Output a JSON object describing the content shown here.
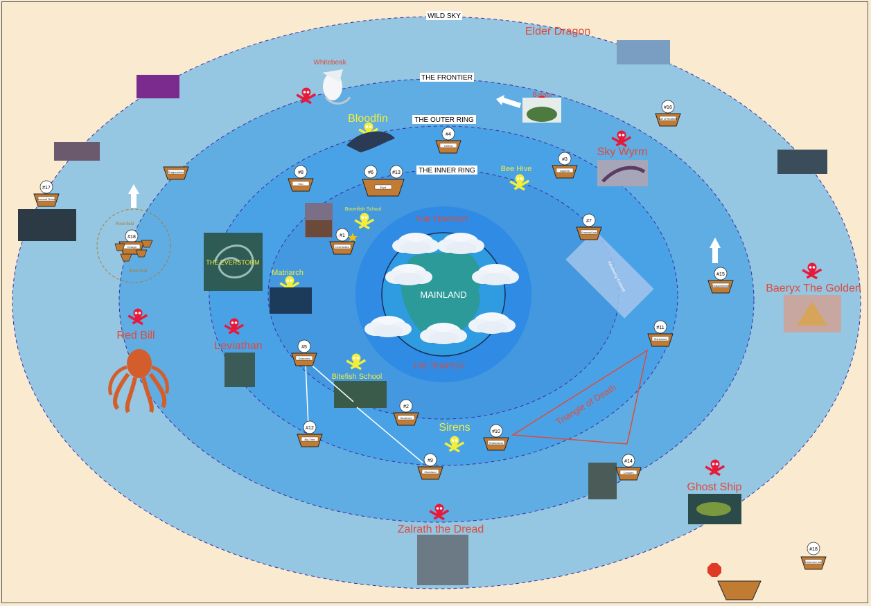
{
  "rings": {
    "wild_sky": "WILD SKY",
    "frontier": "THE FRONTIER",
    "outer_ring": "THE OUTER RING",
    "inner_ring": "THE INNER RING",
    "tempest_top": "THE TEMPEST",
    "tempest_bottom": "THE TEMPEST",
    "mainland": "MAINLAND",
    "everstorm": "THE EVERSTORM"
  },
  "threats": {
    "elder_dragon": "Elder Dragon",
    "whitebeak": "Whitebeak",
    "balaur": "Balaur",
    "sky_wyrm": "Sky Wyrm",
    "baeryx": "Baeryx The Golden",
    "red_bill": "Red Bill",
    "leviathan": "Leviathan",
    "ghost_ship": "Ghost Ship",
    "zalrath": "Zalrath the Dread"
  },
  "minor_threats": {
    "bloodfin": "Bloodfin",
    "bee_hive": "Bee Hive",
    "boomfish": "Boomfish School",
    "matriarch": "Matriarch",
    "bitefish": "Bitefish School",
    "sirens": "Sirens"
  },
  "zones": {
    "triangle": "Triangle of Death",
    "rock_field_top": "Rock field",
    "rock_field_bottom": "Rock field",
    "windsong": "Windsong Current"
  },
  "islands": {
    "n1": "#1",
    "n2": "#2",
    "n3": "#3",
    "n4": "#4",
    "n5": "#5",
    "n6": "#6",
    "n7": "#7",
    "n8": "#8",
    "n9": "#9",
    "n10": "#10",
    "n11": "#11",
    "n12": "#12",
    "n13": "#13",
    "n14": "#14",
    "n15": "#15",
    "n16": "#16",
    "n17": "#17",
    "n18a": "#18",
    "n18b": "#18"
  },
  "island_names": {
    "i1": "Overstoken",
    "i2": "Seashore",
    "i3": "Aquirria",
    "i4": "Umbra",
    "i5": "Duskmire",
    "i6": "Elyst",
    "i7": "Emerald Isle",
    "i8": "Edo",
    "i9": "Muckland",
    "i10": "Shadowrun",
    "i11": "Shirewood",
    "i12": "Big Tree",
    "i14": "Corsairs",
    "i15": "Dragonshead",
    "i16": "Isle of Redfield",
    "i17": "Ironwell Ruins",
    "i18a": "Tortuga",
    "i18b": "Unknown Isle",
    "dragonstone": "Dragonstone"
  },
  "colors": {
    "sand": "#faebd0",
    "wild_sky": "#95c6e2",
    "frontier": "#5fadE2",
    "outer": "#4aa2e6",
    "inner": "#4398df",
    "tempest": "#2f8be3",
    "threat": "#e04a3a",
    "minor": "#f2ee3a",
    "basket": "#c17b33"
  },
  "icons": [
    "skull-crossbones-icon",
    "basket-icon",
    "arrow-icon",
    "star-icon",
    "stop-icon"
  ]
}
